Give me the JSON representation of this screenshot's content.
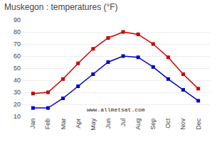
{
  "chart_data": {
    "type": "line",
    "title": "Muskegon : temperatures (°F)",
    "categories": [
      "Jan",
      "Feb",
      "Mar",
      "Apr",
      "May",
      "Jun",
      "Jul",
      "Aug",
      "Sep",
      "Oct",
      "Nov",
      "Dec"
    ],
    "series": [
      {
        "color": "#cc0000",
        "marker": "square",
        "values": [
          29,
          30,
          41,
          54,
          66,
          75,
          80,
          78,
          70,
          59,
          45,
          33
        ]
      },
      {
        "color": "#0000cc",
        "marker": "square",
        "values": [
          17,
          17,
          25,
          35,
          45,
          55,
          60,
          59,
          51,
          41,
          32,
          23
        ]
      }
    ],
    "ylim": [
      10,
      90
    ],
    "yticks": [
      10,
      20,
      30,
      40,
      50,
      60,
      70,
      80,
      90
    ],
    "grid": true,
    "annotations": [
      "www.allmetsat.com"
    ]
  }
}
